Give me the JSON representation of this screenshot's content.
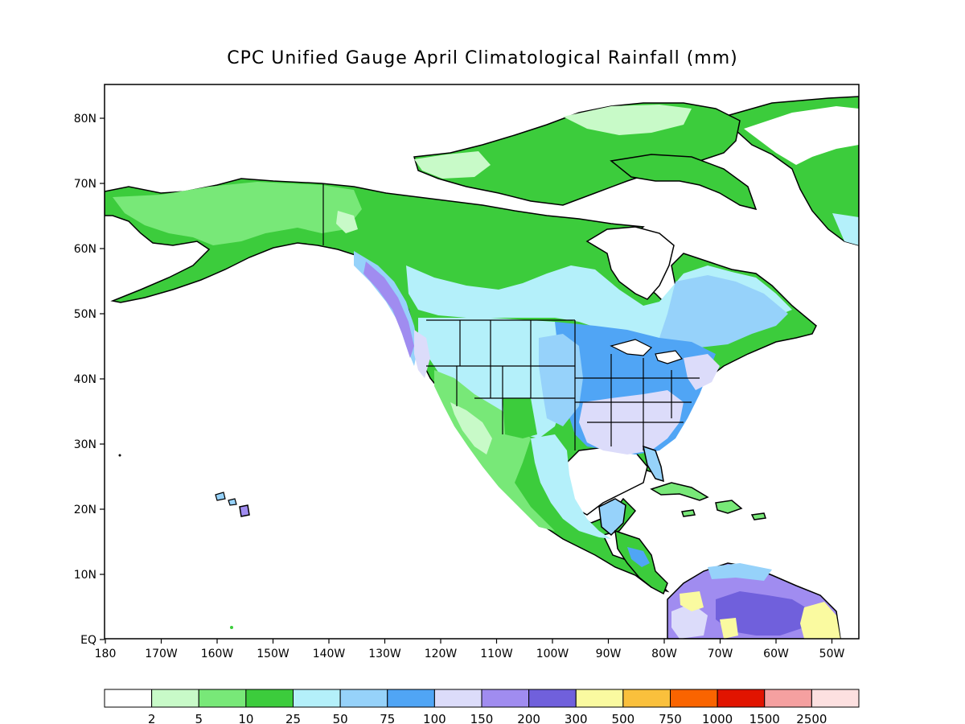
{
  "title": "CPC Unified Gauge April Climatological Rainfall (mm)",
  "latitude_labels": [
    "80N",
    "70N",
    "60N",
    "50N",
    "40N",
    "30N",
    "20N",
    "10N",
    "EQ"
  ],
  "longitude_labels": [
    "180",
    "170W",
    "160W",
    "150W",
    "140W",
    "130W",
    "120W",
    "110W",
    "100W",
    "90W",
    "80W",
    "70W",
    "60W",
    "50W"
  ],
  "colorbar": {
    "thresholds": [
      "2",
      "5",
      "10",
      "25",
      "50",
      "75",
      "100",
      "150",
      "200",
      "300",
      "500",
      "750",
      "1000",
      "1500",
      "2500"
    ],
    "colors": [
      "#ffffff",
      "#c8fac8",
      "#78e878",
      "#3ccc3c",
      "#b4f0fa",
      "#96d2fa",
      "#50a5f5",
      "#dcdcfa",
      "#a08cf0",
      "#7060dc",
      "#fafaa0",
      "#fac03c",
      "#fa6400",
      "#e11400",
      "#f5a0a0",
      "#fde0e0"
    ]
  },
  "map_colors": {
    "land_outline": "#000000",
    "green_light": "#c8fac8",
    "green_mid": "#78e878",
    "green_dark": "#3ccc3c",
    "cyan": "#b4f0fa",
    "blue_light": "#96d2fa",
    "blue": "#50a5f5",
    "lavender": "#dcdcfa",
    "purple": "#a08cf0",
    "violet": "#7060dc",
    "yellow": "#fafaa0"
  }
}
